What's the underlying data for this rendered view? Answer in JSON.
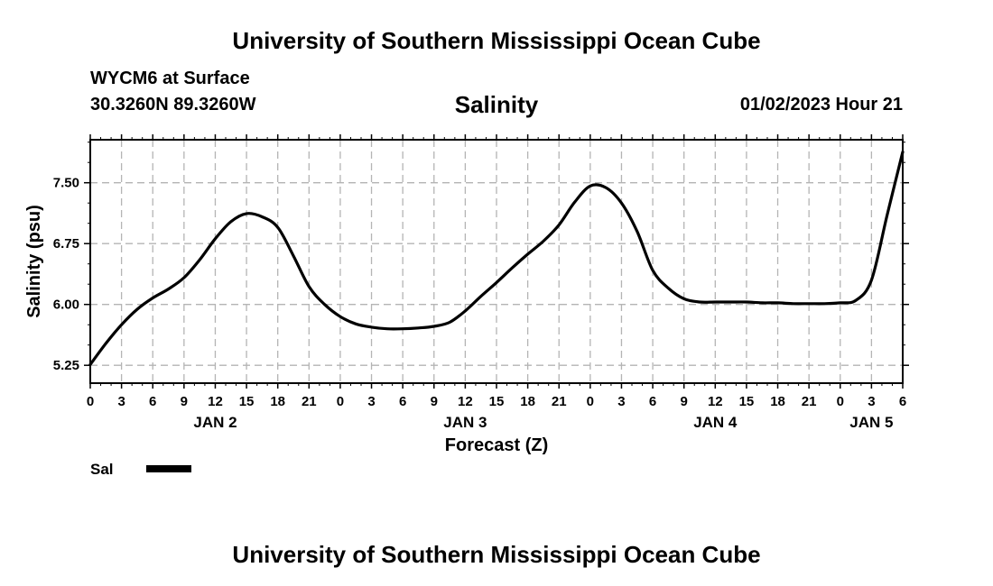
{
  "header": {
    "title": "University of Southern Mississippi Ocean Cube",
    "station": "WYCM6 at Surface",
    "coordinates": "30.3260N  89.3260W",
    "parameter": "Salinity",
    "datetime": "01/02/2023 Hour 21"
  },
  "footer": {
    "title": "University of Southern Mississippi Ocean Cube"
  },
  "chart_data": {
    "type": "line",
    "title": "Salinity",
    "xlabel": "Forecast (Z)",
    "ylabel": "Salinity (psu)",
    "xlim": [
      0,
      78
    ],
    "ylim": [
      5.03,
      8.03
    ],
    "y_ticks": [
      5.25,
      6.0,
      6.75,
      7.5
    ],
    "y_tick_labels": [
      "5.25",
      "6.00",
      "6.75",
      "7.50"
    ],
    "x_ticks": [
      0,
      3,
      6,
      9,
      12,
      15,
      18,
      21,
      24,
      27,
      30,
      33,
      36,
      39,
      42,
      45,
      48,
      51,
      54,
      57,
      60,
      63,
      66,
      69,
      72,
      75,
      78
    ],
    "x_tick_labels": [
      "0",
      "3",
      "6",
      "9",
      "12",
      "15",
      "18",
      "21",
      "0",
      "3",
      "6",
      "9",
      "12",
      "15",
      "18",
      "21",
      "0",
      "3",
      "6",
      "9",
      "12",
      "15",
      "18",
      "21",
      "0",
      "3",
      "6"
    ],
    "date_labels": [
      {
        "label": "JAN 2",
        "x": 12
      },
      {
        "label": "JAN 3",
        "x": 36
      },
      {
        "label": "JAN 4",
        "x": 60
      },
      {
        "label": "JAN 5",
        "x": 75
      }
    ],
    "grid": true,
    "series": [
      {
        "name": "Sal",
        "color": "#000000",
        "x": [
          0,
          1.5,
          3,
          4.5,
          6,
          7.5,
          9,
          10.5,
          12,
          13.5,
          15,
          16.5,
          18,
          19.5,
          21,
          22.5,
          24,
          25.5,
          27,
          28.5,
          30,
          31.5,
          33,
          34.5,
          36,
          37.5,
          39,
          40.5,
          42,
          43.5,
          45,
          46.5,
          48,
          49.5,
          51,
          52.5,
          54,
          55.5,
          57,
          58.5,
          60,
          61.5,
          63,
          64.5,
          66,
          67.5,
          69,
          70.5,
          72,
          73.5,
          75,
          76.5,
          78
        ],
        "values": [
          5.26,
          5.52,
          5.75,
          5.94,
          6.08,
          6.19,
          6.33,
          6.55,
          6.81,
          7.02,
          7.12,
          7.08,
          6.95,
          6.6,
          6.22,
          6.0,
          5.85,
          5.76,
          5.72,
          5.7,
          5.7,
          5.71,
          5.73,
          5.78,
          5.92,
          6.1,
          6.27,
          6.45,
          6.62,
          6.78,
          6.98,
          7.26,
          7.46,
          7.44,
          7.25,
          6.9,
          6.42,
          6.2,
          6.07,
          6.03,
          6.03,
          6.03,
          6.03,
          6.02,
          6.02,
          6.01,
          6.01,
          6.01,
          6.02,
          6.05,
          6.3,
          7.1,
          7.88
        ]
      }
    ],
    "legend": {
      "label": "Sal",
      "placement": "bottom-left"
    }
  }
}
